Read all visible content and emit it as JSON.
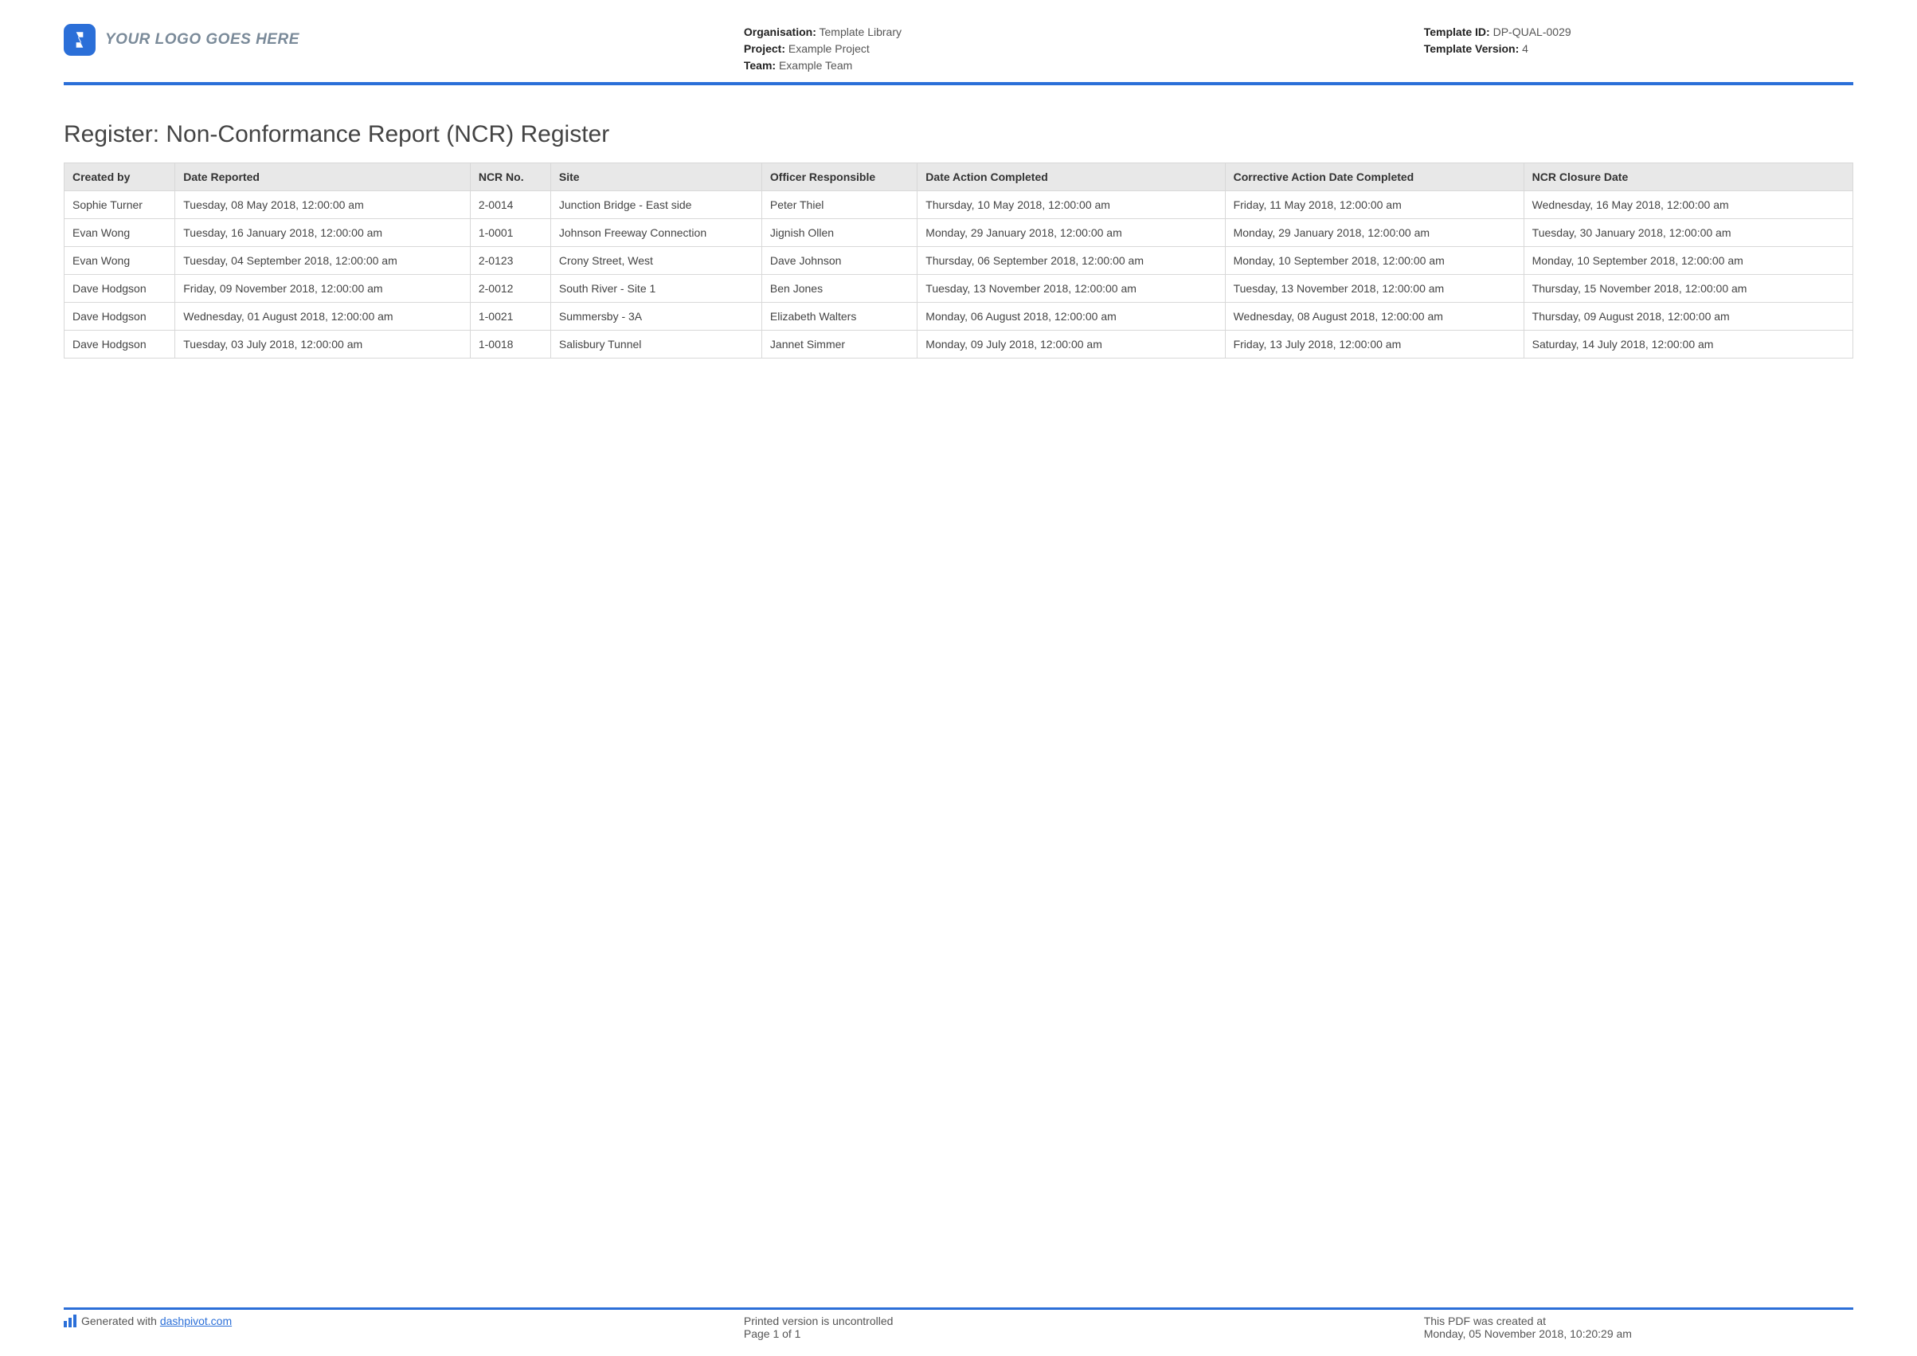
{
  "header": {
    "logo_placeholder": "YOUR LOGO GOES HERE",
    "organisation_label": "Organisation:",
    "organisation_value": "Template Library",
    "project_label": "Project:",
    "project_value": "Example Project",
    "team_label": "Team:",
    "team_value": "Example Team",
    "template_id_label": "Template ID:",
    "template_id_value": "DP-QUAL-0029",
    "template_version_label": "Template Version:",
    "template_version_value": "4"
  },
  "title": "Register: Non-Conformance Report (NCR) Register",
  "table": {
    "columns": [
      {
        "label": "Created by",
        "width": "6.2%"
      },
      {
        "label": "Date Reported",
        "width": "16.5%"
      },
      {
        "label": "NCR No.",
        "width": "4.5%"
      },
      {
        "label": "Site",
        "width": "11.8%"
      },
      {
        "label": "Officer Responsible",
        "width": "8.7%"
      },
      {
        "label": "Date Action Completed",
        "width": "17.2%"
      },
      {
        "label": "Corrective Action Date Completed",
        "width": "16.7%"
      },
      {
        "label": "NCR Closure Date",
        "width": "18.4%"
      }
    ],
    "rows": [
      [
        "Sophie Turner",
        "Tuesday, 08 May 2018, 12:00:00 am",
        "2-0014",
        "Junction Bridge - East side",
        "Peter Thiel",
        "Thursday, 10 May 2018, 12:00:00 am",
        "Friday, 11 May 2018, 12:00:00 am",
        "Wednesday, 16 May 2018, 12:00:00 am"
      ],
      [
        "Evan Wong",
        "Tuesday, 16 January 2018, 12:00:00 am",
        "1-0001",
        "Johnson Freeway Connection",
        "Jignish Ollen",
        "Monday, 29 January 2018, 12:00:00 am",
        "Monday, 29 January 2018, 12:00:00 am",
        "Tuesday, 30 January 2018, 12:00:00 am"
      ],
      [
        "Evan Wong",
        "Tuesday, 04 September 2018, 12:00:00 am",
        "2-0123",
        "Crony Street, West",
        "Dave Johnson",
        "Thursday, 06 September 2018, 12:00:00 am",
        "Monday, 10 September 2018, 12:00:00 am",
        "Monday, 10 September 2018, 12:00:00 am"
      ],
      [
        "Dave Hodgson",
        "Friday, 09 November 2018, 12:00:00 am",
        "2-0012",
        "South River - Site 1",
        "Ben Jones",
        "Tuesday, 13 November 2018, 12:00:00 am",
        "Tuesday, 13 November 2018, 12:00:00 am",
        "Thursday, 15 November 2018, 12:00:00 am"
      ],
      [
        "Dave Hodgson",
        "Wednesday, 01 August 2018, 12:00:00 am",
        "1-0021",
        "Summersby - 3A",
        "Elizabeth Walters",
        "Monday, 06 August 2018, 12:00:00 am",
        "Wednesday, 08 August 2018, 12:00:00 am",
        "Thursday, 09 August 2018, 12:00:00 am"
      ],
      [
        "Dave Hodgson",
        "Tuesday, 03 July 2018, 12:00:00 am",
        "1-0018",
        "Salisbury Tunnel",
        "Jannet Simmer",
        "Monday, 09 July 2018, 12:00:00 am",
        "Friday, 13 July 2018, 12:00:00 am",
        "Saturday, 14 July 2018, 12:00:00 am"
      ]
    ],
    "header_bg": "#e8e8e8",
    "border_color": "#d8d8d8",
    "font_size": 14
  },
  "footer": {
    "generated_prefix": "Generated with ",
    "generated_link_text": "dashpivot.com",
    "print_line1": "Printed version is uncontrolled",
    "print_line2": "Page 1 of 1",
    "created_line1": "This PDF was created at",
    "created_line2": "Monday, 05 November 2018, 10:20:29 am"
  },
  "colors": {
    "accent": "#2b6fd8",
    "text": "#333333",
    "muted": "#7a8a99",
    "background": "#ffffff"
  }
}
